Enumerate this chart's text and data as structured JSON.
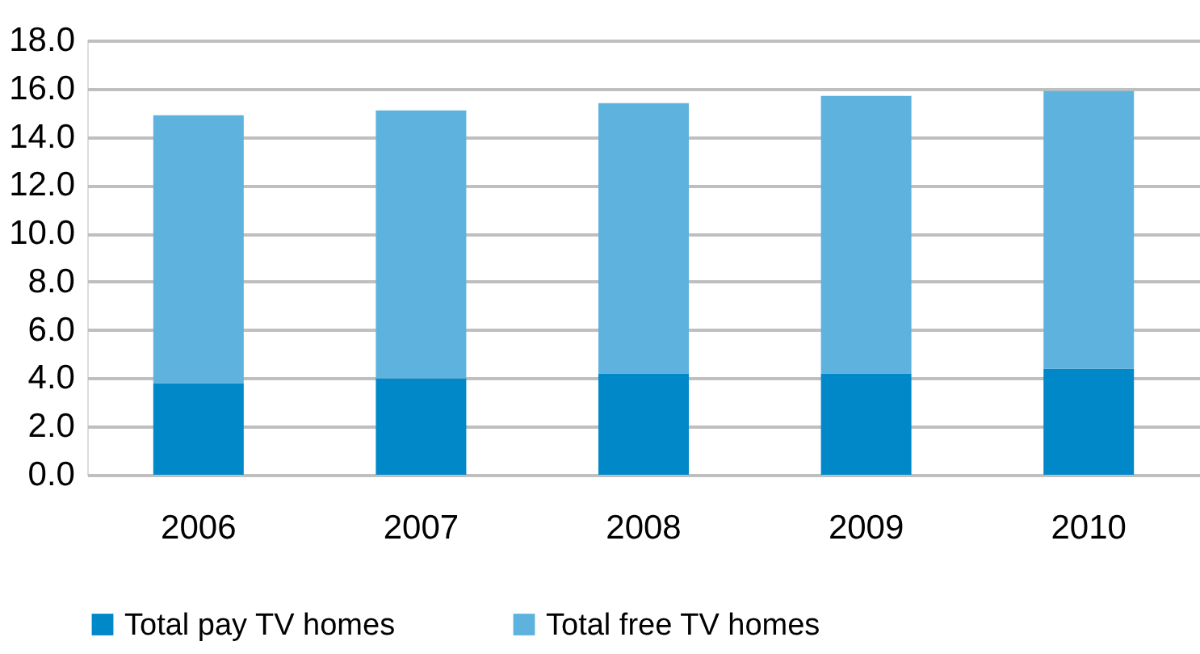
{
  "chart_data": {
    "type": "bar",
    "stacked": true,
    "categories": [
      "2006",
      "2007",
      "2008",
      "2009",
      "2010"
    ],
    "series": [
      {
        "name": "Total pay TV homes",
        "color": "#0088c8",
        "values": [
          3.8,
          4.0,
          4.2,
          4.2,
          4.4
        ]
      },
      {
        "name": "Total free TV homes",
        "color": "#5eb3de",
        "values": [
          11.1,
          11.1,
          11.2,
          11.5,
          11.5
        ]
      }
    ],
    "ylim": [
      0,
      18
    ],
    "yticks": [
      {
        "value": 0,
        "label": "0.0"
      },
      {
        "value": 2,
        "label": "2.0"
      },
      {
        "value": 4,
        "label": "4.0"
      },
      {
        "value": 6,
        "label": "6.0"
      },
      {
        "value": 8,
        "label": "8.0"
      },
      {
        "value": 10,
        "label": "10.0"
      },
      {
        "value": 12,
        "label": "12.0"
      },
      {
        "value": 14,
        "label": "14.0"
      },
      {
        "value": 16,
        "label": "16.0"
      },
      {
        "value": 18,
        "label": "18.0"
      }
    ],
    "grid": "y",
    "legend": "bottom left"
  }
}
